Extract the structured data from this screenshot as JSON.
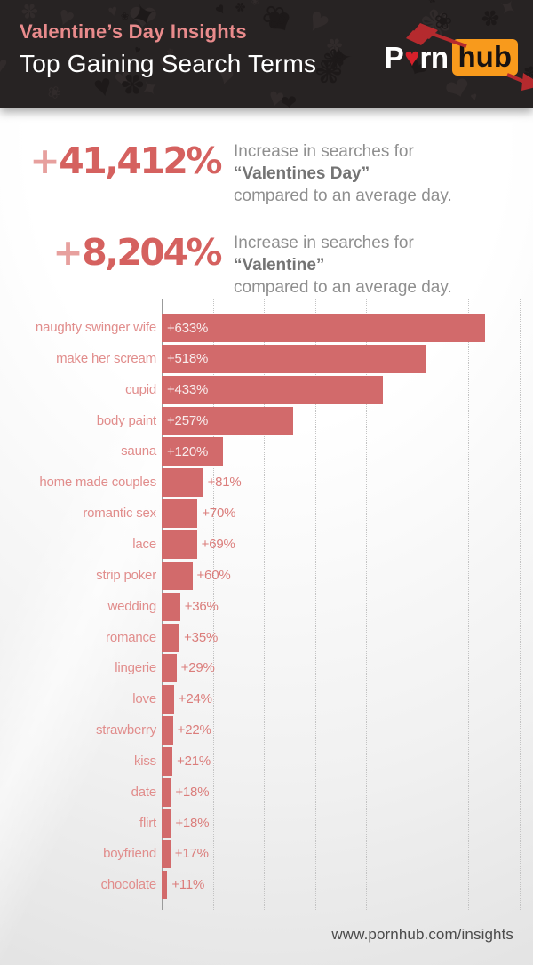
{
  "header": {
    "title": "Valentine’s Day Insights",
    "subtitle": "Top Gaining Search Terms",
    "logo": {
      "text_left": "P",
      "heart_icon": "♥",
      "text_mid": "rn",
      "text_box": "hub"
    }
  },
  "stats": [
    {
      "plus": "+",
      "number": "41,412%",
      "line1": "Increase in searches for",
      "term": "“Valentines Day”",
      "line2": "compared to an average day."
    },
    {
      "plus": "+",
      "number": "8,204%",
      "line1": "Increase in searches for",
      "term": "“Valentine”",
      "line2": "compared to an average day."
    }
  ],
  "chart_data": {
    "type": "bar",
    "orientation": "horizontal",
    "title": "",
    "xlabel": "",
    "ylabel": "",
    "categories": [
      "naughty swinger wife",
      "make her scream",
      "cupid",
      "body paint",
      "sauna",
      "home made couples",
      "romantic sex",
      "lace",
      "strip poker",
      "wedding",
      "romance",
      "lingerie",
      "love",
      "strawberry",
      "kiss",
      "date",
      "flirt",
      "boyfriend",
      "chocolate"
    ],
    "values": [
      633,
      518,
      433,
      257,
      120,
      81,
      70,
      69,
      60,
      36,
      35,
      29,
      24,
      22,
      21,
      18,
      18,
      17,
      11
    ],
    "value_labels": [
      "+633%",
      "+518%",
      "+433%",
      "+257%",
      "+120%",
      "+81%",
      "+70%",
      "+69%",
      "+60%",
      "+36%",
      "+35%",
      "+29%",
      "+24%",
      "+22%",
      "+21%",
      "+18%",
      "+18%",
      "+17%",
      "+11%"
    ],
    "xlim": [
      0,
      700
    ],
    "gridline_step": 100,
    "grid": true,
    "legend": false,
    "bar_color": "#d26a6b",
    "inside_label_threshold": 100
  },
  "footer": {
    "url": "www.pornhub.com/insights"
  },
  "colors": {
    "header_bg": "#272323",
    "title_pink": "#e98b8c",
    "stat_number": "#d5615f",
    "bar": "#d26a6b",
    "category_label": "#e18d8c",
    "logo_orange": "#f89a1c",
    "logo_heart_red": "#d6212b",
    "arrow_red": "#b52a2e"
  }
}
